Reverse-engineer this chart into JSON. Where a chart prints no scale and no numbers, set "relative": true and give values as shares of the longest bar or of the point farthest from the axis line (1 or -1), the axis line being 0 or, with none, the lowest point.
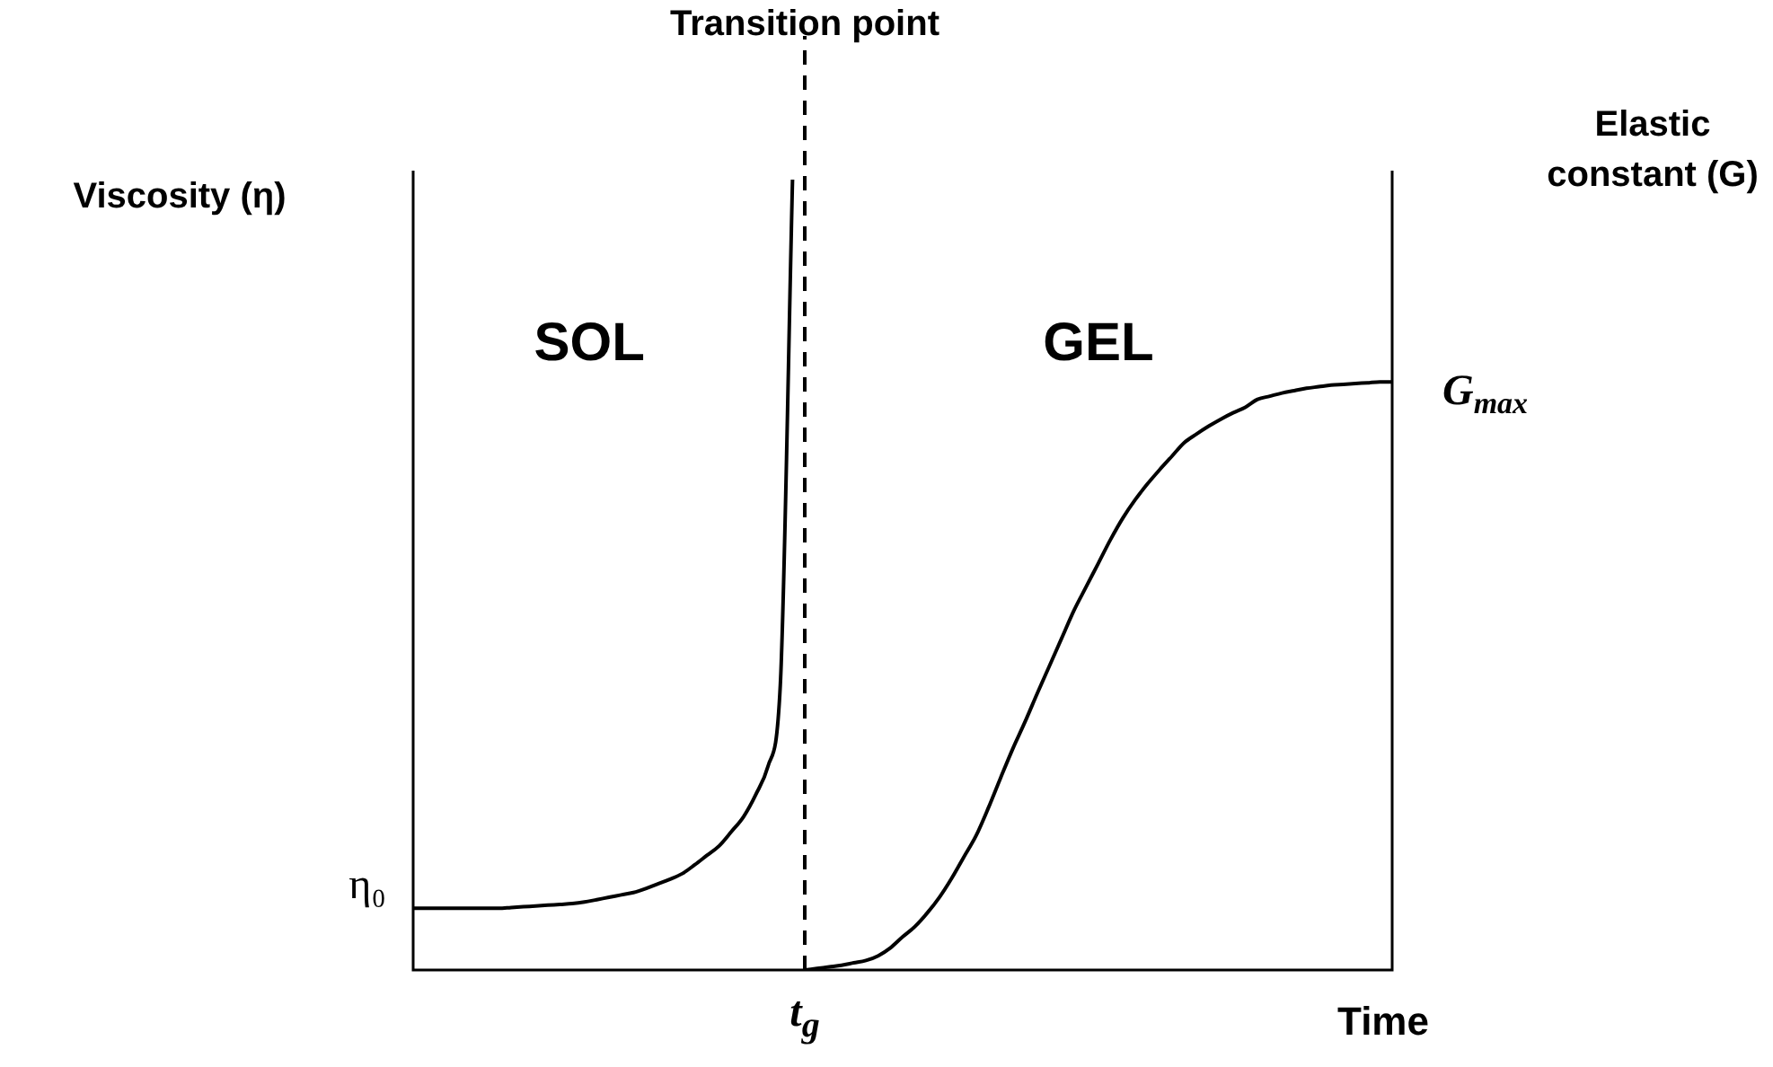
{
  "chart_data": {
    "type": "line",
    "relative": true,
    "xlabel": "Time",
    "ylabel": "Viscosity (η)",
    "y2label": "Elastic constant (G)",
    "categories": [
      null,
      null,
      null,
      null,
      null,
      null,
      null,
      null,
      null,
      null,
      null,
      null,
      null,
      null,
      null,
      null,
      null,
      null,
      null,
      null,
      null,
      null,
      null,
      null,
      null,
      null,
      null,
      null,
      null,
      null,
      null,
      null,
      null,
      null,
      null,
      null,
      null,
      null,
      null,
      null,
      null,
      null,
      null,
      null,
      null,
      null,
      null,
      null,
      null,
      null,
      null,
      null,
      null,
      null,
      null,
      null,
      null,
      null,
      null,
      null,
      null,
      null,
      null,
      null,
      null,
      null,
      null,
      null,
      null,
      null,
      null,
      null,
      null,
      null,
      null,
      null,
      null,
      null,
      null,
      null,
      null
    ],
    "series": [
      {
        "color": "#000000",
        "values": [
          0.078,
          0.078,
          0.078,
          0.078,
          0.078,
          0.078,
          0.078,
          0.078,
          0.079,
          0.08,
          0.081,
          0.082,
          0.083,
          0.084,
          0.086,
          0.089,
          0.092,
          0.095,
          0.098,
          0.103,
          0.109,
          0.115,
          0.122,
          0.133,
          0.145,
          0.157,
          0.175,
          0.194,
          0.222,
          0.258,
          0.36,
          1,
          null,
          null,
          null,
          null,
          null,
          null,
          null,
          null,
          null,
          null,
          null,
          null,
          null,
          null,
          null,
          null,
          null,
          null,
          null,
          null,
          null,
          null,
          null,
          null,
          null,
          null,
          null,
          null,
          null,
          null,
          null,
          null,
          null,
          null,
          null,
          null,
          null,
          null,
          null,
          null,
          null,
          null,
          null,
          null,
          null,
          null,
          null,
          null,
          null
        ]
      },
      {
        "color": "#000000",
        "values": [
          null,
          null,
          null,
          null,
          null,
          null,
          null,
          null,
          null,
          null,
          null,
          null,
          null,
          null,
          null,
          null,
          null,
          null,
          null,
          null,
          null,
          null,
          null,
          null,
          null,
          null,
          null,
          null,
          null,
          null,
          null,
          null,
          0,
          0.002,
          0.004,
          0.006,
          0.009,
          0.012,
          0.018,
          0.028,
          0.042,
          0.055,
          0.072,
          0.092,
          0.116,
          0.143,
          0.17,
          0.205,
          0.243,
          0.28,
          0.314,
          0.35,
          0.385,
          0.42,
          0.455,
          0.485,
          0.515,
          0.545,
          0.572,
          0.595,
          0.615,
          0.633,
          0.65,
          0.667,
          0.678,
          0.688,
          0.697,
          0.705,
          0.712,
          0.722,
          0.726,
          0.73,
          0.733,
          0.736,
          0.738,
          0.74,
          0.741,
          0.742,
          0.743,
          0.744,
          0.744
        ]
      }
    ],
    "ref_lines": [
      {
        "axis": "x",
        "label": "Transition point",
        "color": "#000000",
        "line_style": "dashed"
      }
    ],
    "annotations": [
      "SOL",
      "GEL",
      "t$_{g}$",
      "η₀",
      "G$_{max}$"
    ],
    "legend": false,
    "marker": "none",
    "line_style": "solid"
  }
}
